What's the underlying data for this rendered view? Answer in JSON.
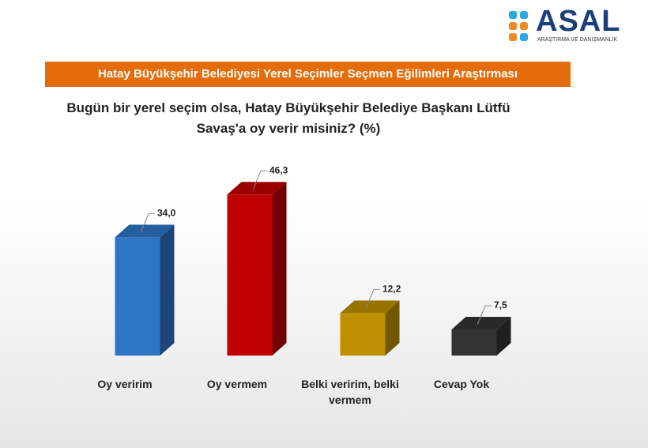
{
  "logo": {
    "name": "ASAL",
    "tagline": "ARAŞTIRMA VE DANIŞMANLIK"
  },
  "banner": "Hatay Büyükşehir Belediyesi Yerel Seçimler Seçmen Eğilimleri Araştırması",
  "chart_data": {
    "type": "bar3d",
    "title": "Bugün bir yerel seçim olsa, Hatay Büyükşehir Belediye Başkanı Lütfü Savaş'a oy verir misiniz? (%)",
    "categories": [
      "Oy veririm",
      "Oy vermem",
      "Belki veririm, belki vermem",
      "Cevap Yok"
    ],
    "values": [
      34.0,
      46.3,
      12.2,
      7.5
    ],
    "value_labels": [
      "34,0",
      "46,3",
      "12,2",
      "7,5"
    ],
    "colors": [
      "#2e75c6",
      "#c00000",
      "#bf9000",
      "#333333"
    ]
  }
}
